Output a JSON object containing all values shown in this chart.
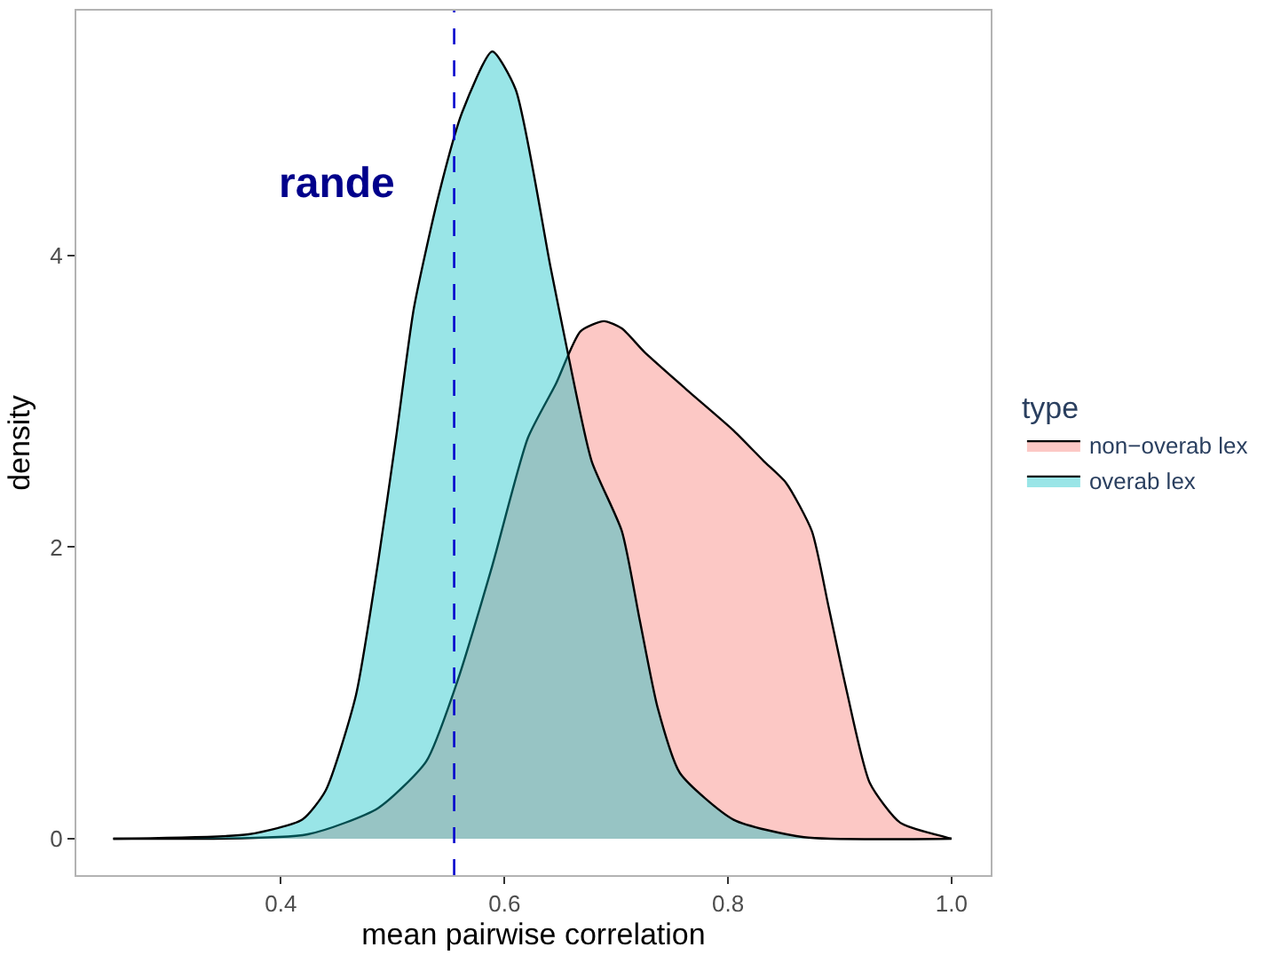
{
  "chart_data": {
    "type": "area",
    "xlabel": "mean pairwise correlation",
    "ylabel": "density",
    "legend_title": "type",
    "series": [
      {
        "name": "non−overab lex",
        "color": "#f8766d",
        "x": [
          0.25,
          0.424,
          0.487,
          0.53,
          0.557,
          0.589,
          0.621,
          0.646,
          0.668,
          0.689,
          0.705,
          0.725,
          0.763,
          0.805,
          0.832,
          0.852,
          0.875,
          0.89,
          0.906,
          0.927,
          0.954,
          0.995,
          1.0
        ],
        "values": [
          0,
          0.03,
          0.21,
          0.53,
          1.06,
          1.87,
          2.75,
          3.12,
          3.48,
          3.55,
          3.5,
          3.34,
          3.08,
          2.8,
          2.59,
          2.44,
          2.11,
          1.59,
          1.02,
          0.38,
          0.11,
          0.01,
          0
        ]
      },
      {
        "name": "overab lex",
        "color": "#00bfc4",
        "x": [
          0.25,
          0.371,
          0.419,
          0.44,
          0.467,
          0.487,
          0.503,
          0.519,
          0.541,
          0.562,
          0.589,
          0.61,
          0.641,
          0.657,
          0.678,
          0.705,
          0.721,
          0.737,
          0.757,
          0.805,
          0.868,
          1.0
        ],
        "values": [
          0,
          0.03,
          0.13,
          0.33,
          0.98,
          1.9,
          2.75,
          3.64,
          4.41,
          4.98,
          5.4,
          5.14,
          3.93,
          3.32,
          2.59,
          2.11,
          1.5,
          0.9,
          0.45,
          0.13,
          0.01,
          0
        ]
      }
    ],
    "xlim": [
      0.217,
      1.035
    ],
    "xticks": [
      0.4,
      0.6,
      0.8,
      {
        "value": 1.0,
        "label": "1.0"
      }
    ],
    "ylim": [
      -0.25,
      5.68
    ],
    "yticks": [
      0,
      2,
      4
    ],
    "ref_lines": [
      {
        "axis": "x",
        "value": 0.555,
        "color": "#0000cd",
        "line_style": "dashed"
      }
    ],
    "annotations": [
      "rande"
    ],
    "legend": "right"
  }
}
